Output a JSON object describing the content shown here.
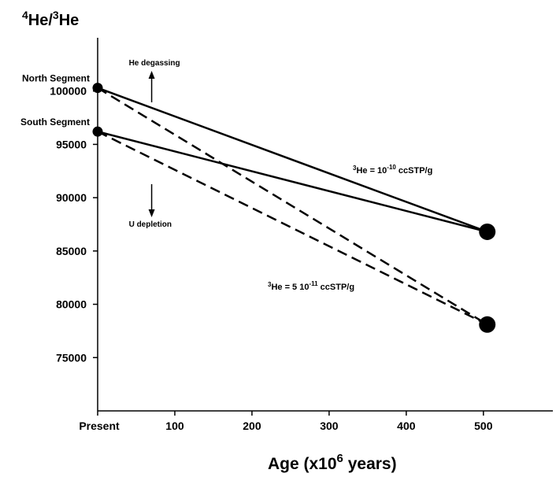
{
  "chart_data": {
    "type": "line",
    "title": "",
    "ylabel": {
      "base": "He/",
      "sup1": "4",
      "sup2": "3",
      "tail": "He"
    },
    "xlabel": {
      "pre": "Age (x10",
      "sup": "6",
      "post": " years)"
    },
    "xlim": [
      0,
      590
    ],
    "ylim": [
      70000,
      105000
    ],
    "x_ticks": [
      {
        "value": 0,
        "label": "Present"
      },
      {
        "value": 100,
        "label": "100"
      },
      {
        "value": 200,
        "label": "200"
      },
      {
        "value": 300,
        "label": "300"
      },
      {
        "value": 400,
        "label": "400"
      },
      {
        "value": 500,
        "label": "500"
      }
    ],
    "y_ticks": [
      {
        "value": 75000,
        "label": "75000"
      },
      {
        "value": 80000,
        "label": "80000"
      },
      {
        "value": 85000,
        "label": "85000"
      },
      {
        "value": 90000,
        "label": "90000"
      },
      {
        "value": 95000,
        "label": "95000"
      },
      {
        "value": 100000,
        "label": "100000"
      }
    ],
    "start_points": [
      {
        "name": "North Segment",
        "x": 0,
        "y": 100300
      },
      {
        "name": "South Segment",
        "x": 0,
        "y": 96200
      }
    ],
    "end_points": [
      {
        "x": 505,
        "y": 86800
      },
      {
        "x": 505,
        "y": 78100
      }
    ],
    "series": [
      {
        "style": "solid",
        "x": [
          0,
          505
        ],
        "y": [
          100300,
          86800
        ]
      },
      {
        "style": "solid",
        "x": [
          0,
          505
        ],
        "y": [
          96200,
          86800
        ]
      },
      {
        "style": "dashed",
        "x": [
          0,
          505
        ],
        "y": [
          100300,
          78100
        ]
      },
      {
        "style": "dashed",
        "x": [
          0,
          505
        ],
        "y": [
          96200,
          78100
        ]
      }
    ],
    "annotations": {
      "up_arrow": {
        "text": "He degassing",
        "x": 70
      },
      "down_arrow": {
        "text": "U depletion",
        "x": 70
      },
      "solid_label": {
        "sup": "3",
        "pre": "He = 10",
        "exp": "-10",
        "post": " ccSTP/g"
      },
      "dashed_label": {
        "sup": "3",
        "pre": "He = 5 10",
        "exp": "-11",
        "post": " ccSTP/g"
      }
    }
  }
}
